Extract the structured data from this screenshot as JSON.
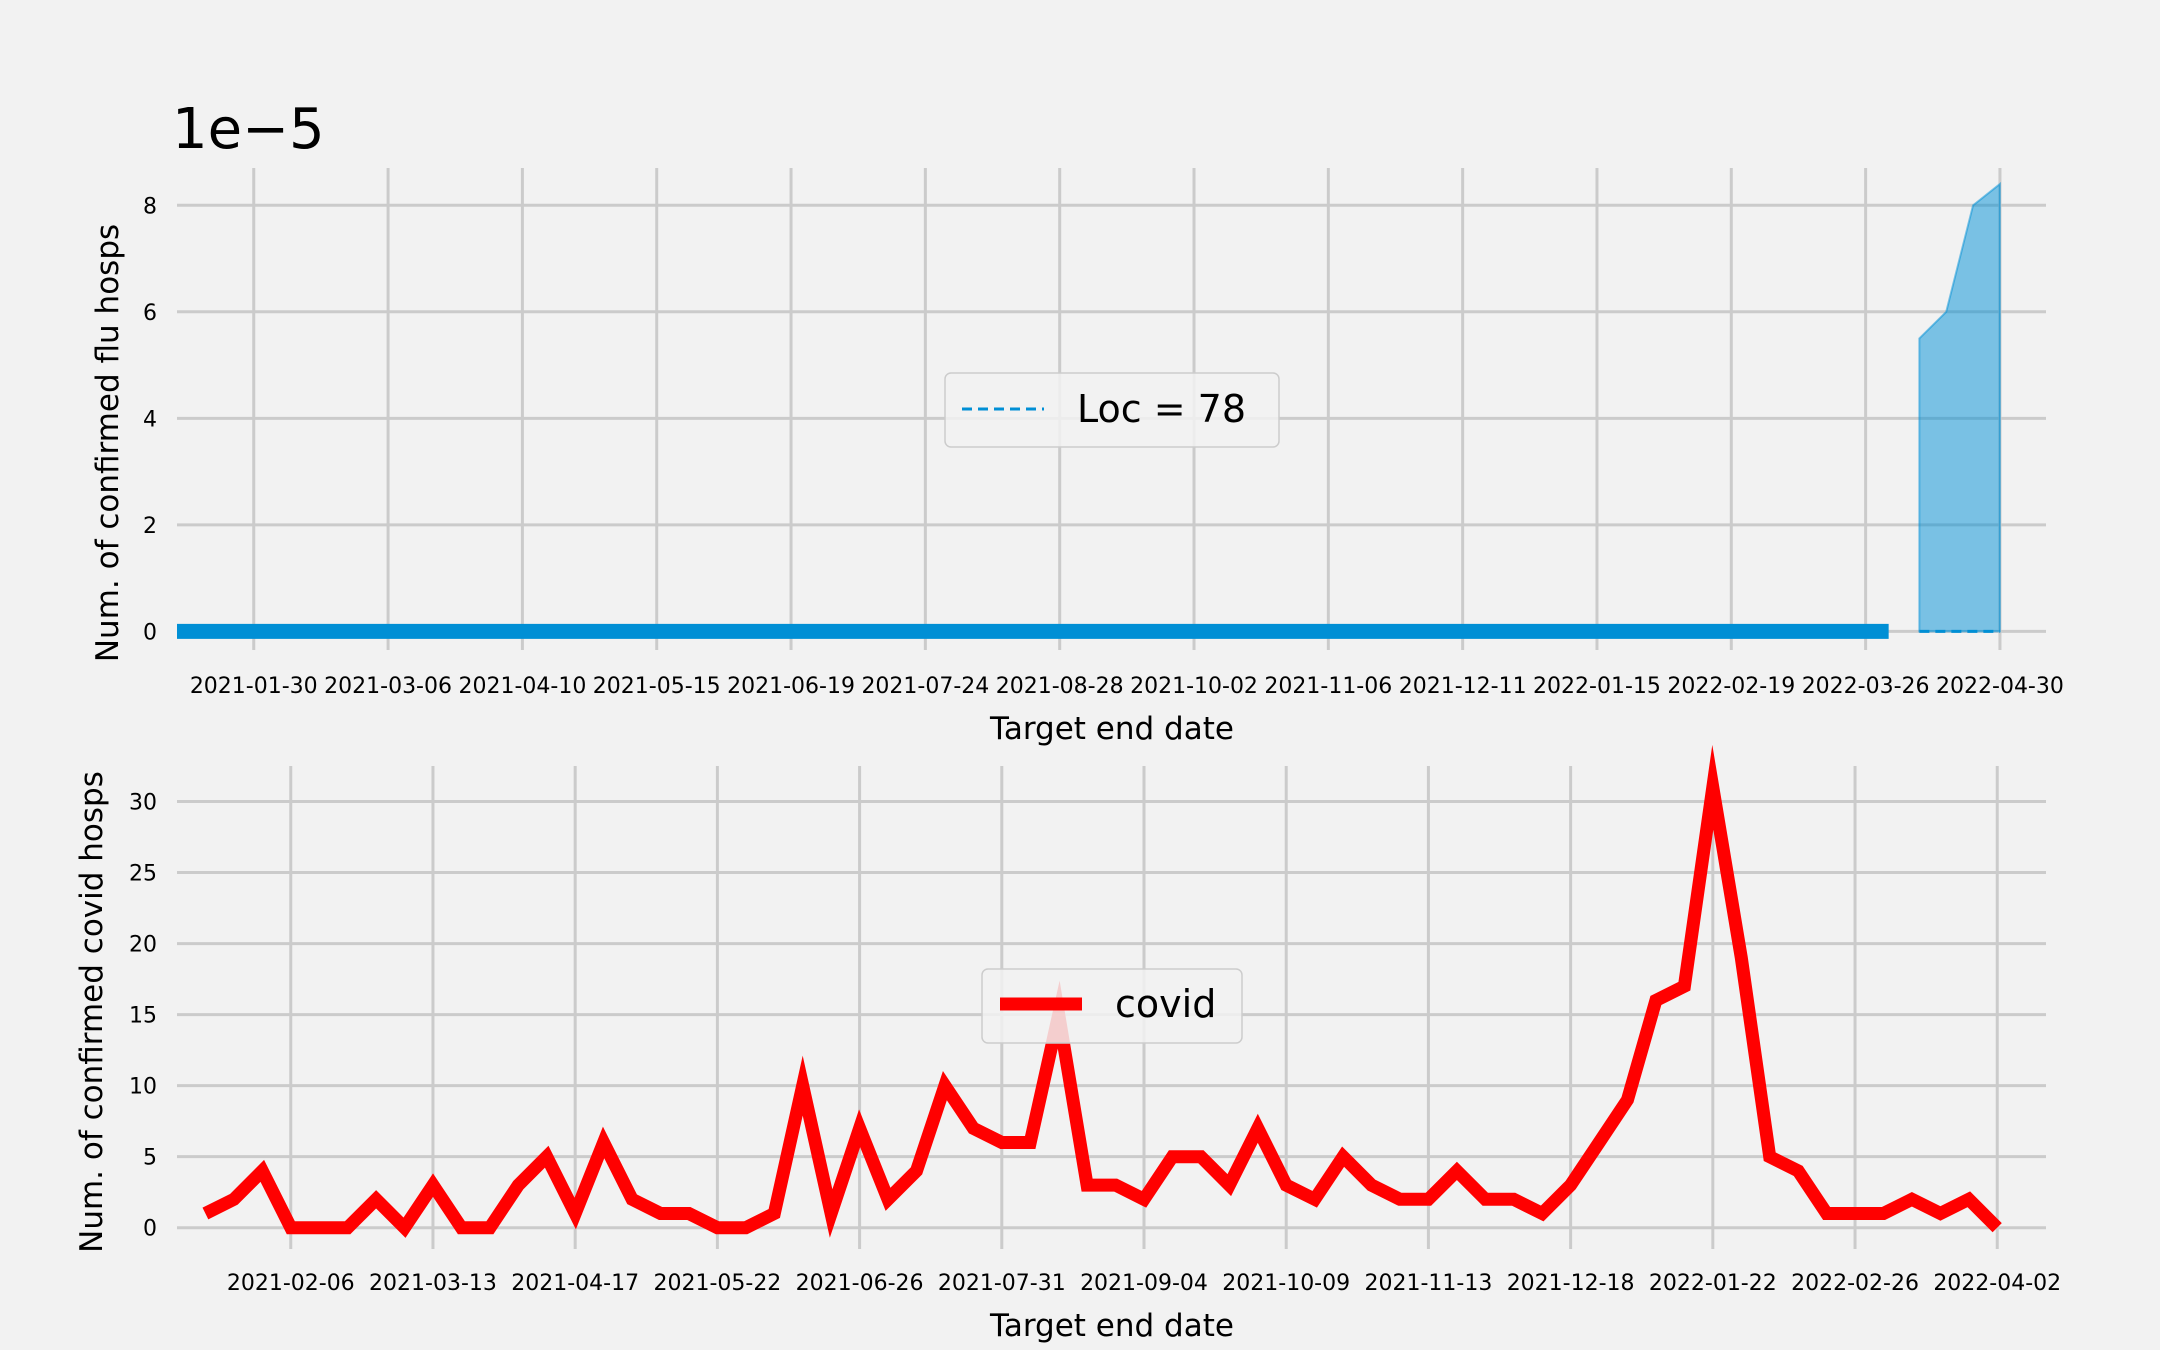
{
  "chart_data": [
    {
      "type": "line",
      "xlabel": "Target end date",
      "ylabel": "Num. of confirmed flu hosps",
      "y_scale_factor": "1e−5",
      "ylim": [
        -3.5e-07,
        8.7e-06
      ],
      "xlim": [
        "2021-01-10",
        "2022-05-12"
      ],
      "yticks": [
        0,
        2e-06,
        4e-06,
        6e-06,
        8e-06
      ],
      "ytick_labels": [
        "0",
        "2",
        "4",
        "6",
        "8"
      ],
      "xticks": [
        "2021-01-30",
        "2021-03-06",
        "2021-04-10",
        "2021-05-15",
        "2021-06-19",
        "2021-07-24",
        "2021-08-28",
        "2021-10-02",
        "2021-11-06",
        "2021-12-11",
        "2022-01-15",
        "2022-02-19",
        "2022-03-26",
        "2022-04-30"
      ],
      "grid": true,
      "legend": {
        "placement": "center",
        "entries": [
          "Loc = 78"
        ]
      },
      "colors": {
        "observed": "#008fd5",
        "forecast_band": "#008fd5"
      },
      "series": [
        {
          "role": "observed",
          "style": "solid",
          "x_range": [
            "2021-01-10",
            "2022-04-01"
          ],
          "values": [
            0,
            0
          ]
        },
        {
          "name": "Loc = 78",
          "role": "forecast",
          "style": "dashed",
          "x": [
            "2022-04-09",
            "2022-04-16",
            "2022-04-23",
            "2022-04-30"
          ],
          "values": [
            0,
            0,
            0,
            0
          ]
        },
        {
          "role": "interval",
          "style": "fill",
          "x": [
            "2022-04-09",
            "2022-04-16",
            "2022-04-23",
            "2022-04-30"
          ],
          "lower": [
            0,
            0,
            0,
            0
          ],
          "upper": [
            5.5e-06,
            6e-06,
            8e-06,
            8.4e-06
          ]
        }
      ]
    },
    {
      "type": "line",
      "xlabel": "Target end date",
      "ylabel": "Num. of confirmed covid hosps",
      "ylim": [
        -1.5,
        32.5
      ],
      "xlim": [
        "2021-01-09",
        "2022-04-14"
      ],
      "yticks": [
        0,
        5,
        10,
        15,
        20,
        25,
        30
      ],
      "xticks": [
        "2021-02-06",
        "2021-03-13",
        "2021-04-17",
        "2021-05-22",
        "2021-06-26",
        "2021-07-31",
        "2021-09-04",
        "2021-10-09",
        "2021-11-13",
        "2021-12-18",
        "2022-01-22",
        "2022-02-26",
        "2022-04-02"
      ],
      "grid": true,
      "legend": {
        "placement": "center",
        "entries": [
          "covid"
        ]
      },
      "colors": {
        "covid": "#ff0000"
      },
      "series": [
        {
          "name": "covid",
          "start": "2021-01-16",
          "interval_days": 7,
          "values": [
            1,
            2,
            4,
            0,
            0,
            0,
            2,
            0,
            3,
            0,
            0,
            3,
            5,
            1,
            6,
            2,
            1,
            1,
            0,
            0,
            1,
            10,
            1,
            7,
            2,
            4,
            10,
            7,
            6,
            6,
            15,
            3,
            3,
            2,
            5,
            5,
            3,
            7,
            3,
            2,
            5,
            3,
            2,
            2,
            4,
            2,
            2,
            1,
            3,
            6,
            9,
            16,
            17,
            31,
            19,
            5,
            4,
            1,
            1,
            1,
            2,
            1,
            2,
            0
          ]
        }
      ]
    }
  ]
}
